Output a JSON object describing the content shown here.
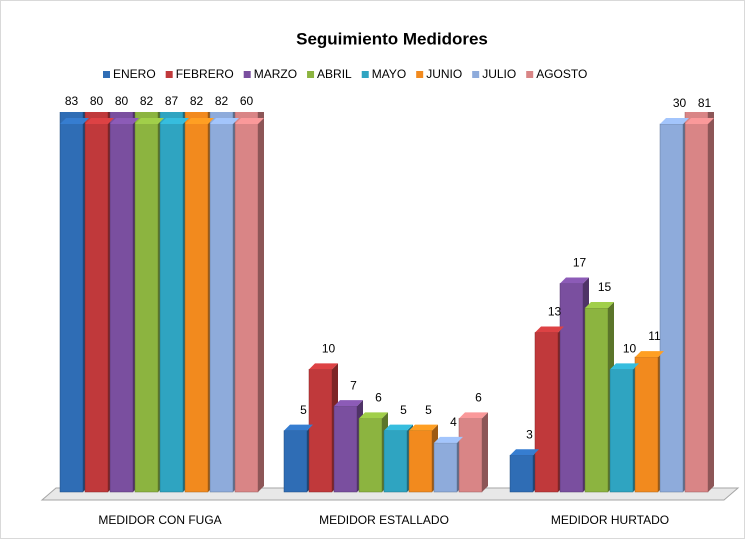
{
  "chart_data": {
    "type": "bar3d",
    "title": "Seguimiento Medidores",
    "categories": [
      "MEDIDOR CON FUGA",
      "MEDIDOR ESTALLADO",
      "MEDIDOR HURTADO"
    ],
    "series": [
      {
        "name": "ENERO",
        "color": "#2f6db5",
        "values": [
          83,
          5,
          3
        ]
      },
      {
        "name": "FEBRERO",
        "color": "#c0393b",
        "values": [
          80,
          10,
          13
        ]
      },
      {
        "name": "MARZO",
        "color": "#7a4f9f",
        "values": [
          80,
          7,
          17
        ]
      },
      {
        "name": "ABRIL",
        "color": "#8cb440",
        "values": [
          82,
          6,
          15
        ]
      },
      {
        "name": "MAYO",
        "color": "#2fa4c1",
        "values": [
          87,
          5,
          10
        ]
      },
      {
        "name": "JUNIO",
        "color": "#f28a1e",
        "values": [
          82,
          5,
          11
        ]
      },
      {
        "name": "JULIO",
        "color": "#8eabdb",
        "values": [
          82,
          4,
          30
        ]
      },
      {
        "name": "AGOSTO",
        "color": "#d98586",
        "values": [
          60,
          6,
          81
        ]
      }
    ],
    "ylim": [
      0,
      30
    ],
    "legend": "top"
  }
}
